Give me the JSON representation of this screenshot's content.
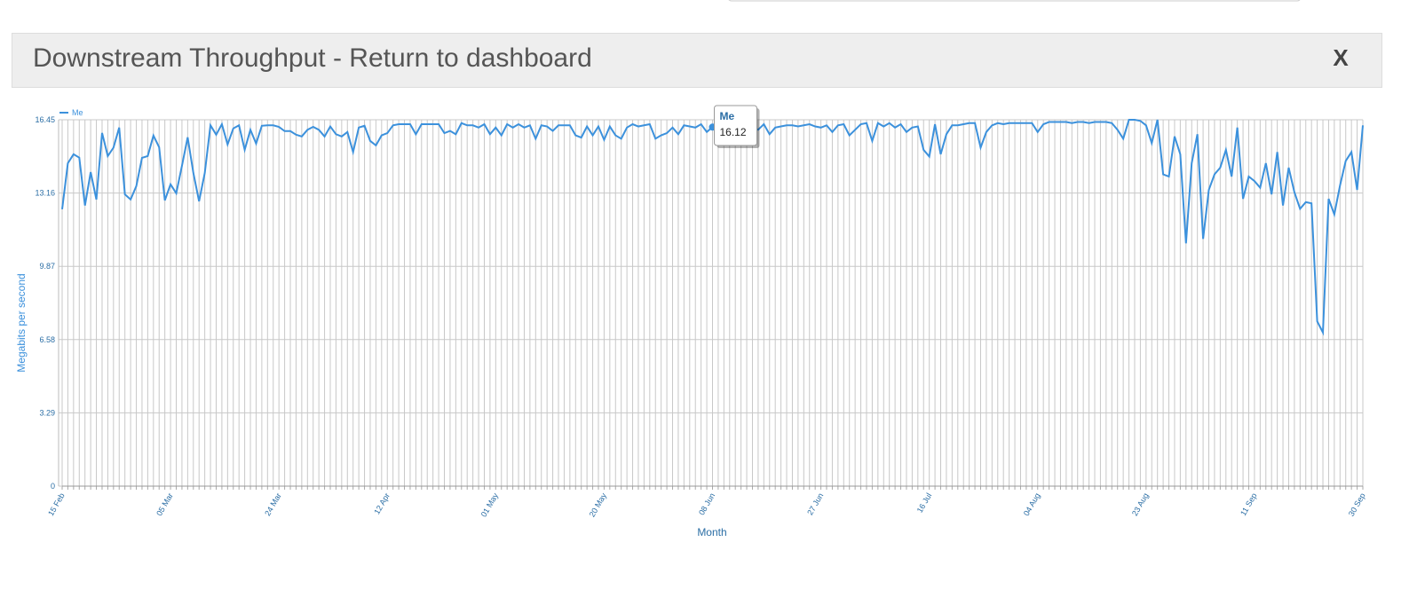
{
  "header": {
    "title": "Downstream Throughput - Return to dashboard",
    "close": "X"
  },
  "chart_data": {
    "type": "line",
    "x_label": "Month",
    "y_label": "Megabits per second",
    "categories": [
      "15 Feb",
      null,
      null,
      null,
      null,
      null,
      null,
      null,
      null,
      null,
      null,
      null,
      null,
      null,
      null,
      null,
      null,
      null,
      null,
      "05 Mar",
      null,
      null,
      null,
      null,
      null,
      null,
      null,
      null,
      null,
      null,
      null,
      null,
      null,
      null,
      null,
      null,
      null,
      null,
      "24 Mar",
      null,
      null,
      null,
      null,
      null,
      null,
      null,
      null,
      null,
      null,
      null,
      null,
      null,
      null,
      null,
      null,
      null,
      null,
      "12 Apr",
      null,
      null,
      null,
      null,
      null,
      null,
      null,
      null,
      null,
      null,
      null,
      null,
      null,
      null,
      null,
      null,
      null,
      null,
      "01 May",
      null,
      null,
      null,
      null,
      null,
      null,
      null,
      null,
      null,
      null,
      null,
      null,
      null,
      null,
      null,
      null,
      null,
      null,
      "20 May",
      null,
      null,
      null,
      null,
      null,
      null,
      null,
      null,
      null,
      null,
      null,
      null,
      null,
      null,
      null,
      null,
      null,
      null,
      "08 Jun",
      null,
      null,
      null,
      null,
      null,
      null,
      null,
      null,
      null,
      null,
      null,
      null,
      null,
      null,
      null,
      null,
      null,
      null,
      "27 Jun",
      null,
      null,
      null,
      null,
      null,
      null,
      null,
      null,
      null,
      null,
      null,
      null,
      null,
      null,
      null,
      null,
      null,
      null,
      "16 Jul",
      null,
      null,
      null,
      null,
      null,
      null,
      null,
      null,
      null,
      null,
      null,
      null,
      null,
      null,
      null,
      null,
      null,
      null,
      "04 Aug",
      null,
      null,
      null,
      null,
      null,
      null,
      null,
      null,
      null,
      null,
      null,
      null,
      null,
      null,
      null,
      null,
      null,
      null,
      "23 Aug",
      null,
      null,
      null,
      null,
      null,
      null,
      null,
      null,
      null,
      null,
      null,
      null,
      null,
      null,
      null,
      null,
      null,
      null,
      "11 Sep",
      null,
      null,
      null,
      null,
      null,
      null,
      null,
      null,
      null,
      null,
      null,
      null,
      null,
      null,
      null,
      null,
      null,
      null,
      "30 Sep"
    ],
    "series": [
      {
        "name": "Me",
        "color": "#3c91dc",
        "values": [
          12.43,
          14.5,
          14.9,
          14.75,
          12.6,
          14.1,
          12.87,
          15.86,
          14.82,
          15.2,
          16.1,
          13.1,
          12.87,
          13.47,
          14.74,
          14.82,
          15.74,
          15.22,
          12.83,
          13.55,
          13.15,
          14.38,
          15.66,
          14.06,
          12.79,
          14.06,
          16.2,
          15.78,
          16.25,
          15.34,
          16.06,
          16.2,
          15.1,
          16.0,
          15.38,
          16.18,
          16.2,
          16.2,
          16.13,
          15.94,
          15.94,
          15.78,
          15.7,
          16.0,
          16.13,
          16.0,
          15.7,
          16.15,
          15.8,
          15.7,
          15.9,
          15.0,
          16.1,
          16.18,
          15.5,
          15.3,
          15.75,
          15.85,
          16.2,
          16.25,
          16.25,
          16.25,
          15.8,
          16.25,
          16.25,
          16.25,
          16.25,
          15.85,
          15.95,
          15.8,
          16.3,
          16.2,
          16.2,
          16.1,
          16.25,
          15.8,
          16.1,
          15.75,
          16.25,
          16.1,
          16.25,
          16.1,
          16.2,
          15.6,
          16.2,
          16.15,
          15.95,
          16.2,
          16.2,
          16.2,
          15.75,
          15.65,
          16.15,
          15.75,
          16.15,
          15.55,
          16.15,
          15.75,
          15.6,
          16.1,
          16.25,
          16.15,
          16.2,
          16.25,
          15.6,
          15.75,
          15.85,
          16.1,
          15.8,
          16.2,
          16.15,
          16.1,
          16.25,
          15.9,
          16.12,
          16.2,
          16.2,
          16.15,
          16.2,
          16.1,
          16.15,
          16.15,
          16.0,
          16.25,
          15.8,
          16.1,
          16.15,
          16.2,
          16.2,
          16.15,
          16.2,
          16.25,
          16.15,
          16.1,
          16.2,
          15.9,
          16.2,
          16.25,
          15.75,
          16.0,
          16.25,
          16.3,
          15.5,
          16.3,
          16.15,
          16.3,
          16.1,
          16.25,
          15.9,
          16.1,
          16.15,
          15.1,
          14.8,
          16.25,
          14.9,
          15.8,
          16.2,
          16.2,
          16.25,
          16.3,
          16.3,
          15.2,
          15.9,
          16.2,
          16.3,
          16.25,
          16.3,
          16.3,
          16.3,
          16.3,
          16.3,
          15.9,
          16.25,
          16.35,
          16.35,
          16.35,
          16.35,
          16.3,
          16.35,
          16.35,
          16.3,
          16.35,
          16.35,
          16.35,
          16.3,
          16.0,
          15.6,
          16.45,
          16.45,
          16.4,
          16.2,
          15.4,
          16.45,
          14.0,
          13.9,
          15.7,
          14.9,
          10.9,
          14.5,
          15.8,
          11.1,
          13.3,
          14.0,
          14.3,
          15.1,
          13.9,
          16.1,
          12.9,
          13.9,
          13.7,
          13.4,
          14.5,
          13.1,
          15.0,
          12.6,
          14.3,
          13.2,
          12.45,
          12.75,
          12.7,
          7.4,
          6.9,
          12.9,
          12.2,
          13.5,
          14.6,
          15.0,
          13.3,
          16.2
        ]
      }
    ],
    "ylim": [
      0,
      16.45
    ],
    "yticks": [
      0,
      3.29,
      6.58,
      9.87,
      13.16,
      16.45
    ],
    "grid": true,
    "legend": "top-left",
    "tooltip": {
      "title": "Me",
      "value": 16.12
    }
  }
}
